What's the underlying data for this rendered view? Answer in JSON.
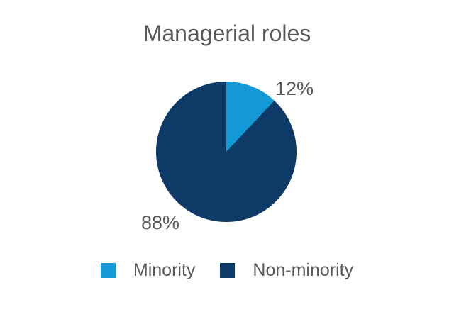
{
  "chart_data": {
    "type": "pie",
    "title": "Managerial roles",
    "labels": [
      "Minority",
      "Non-minority"
    ],
    "values": [
      12,
      88
    ],
    "value_labels": [
      "12%",
      "88%"
    ],
    "colors": [
      "#1399D6",
      "#0D3A66"
    ],
    "text_color": "#595959",
    "background": "#FFFFFF",
    "legend_position": "bottom",
    "start_angle_deg": 0,
    "direction": "clockwise",
    "grid": false
  }
}
